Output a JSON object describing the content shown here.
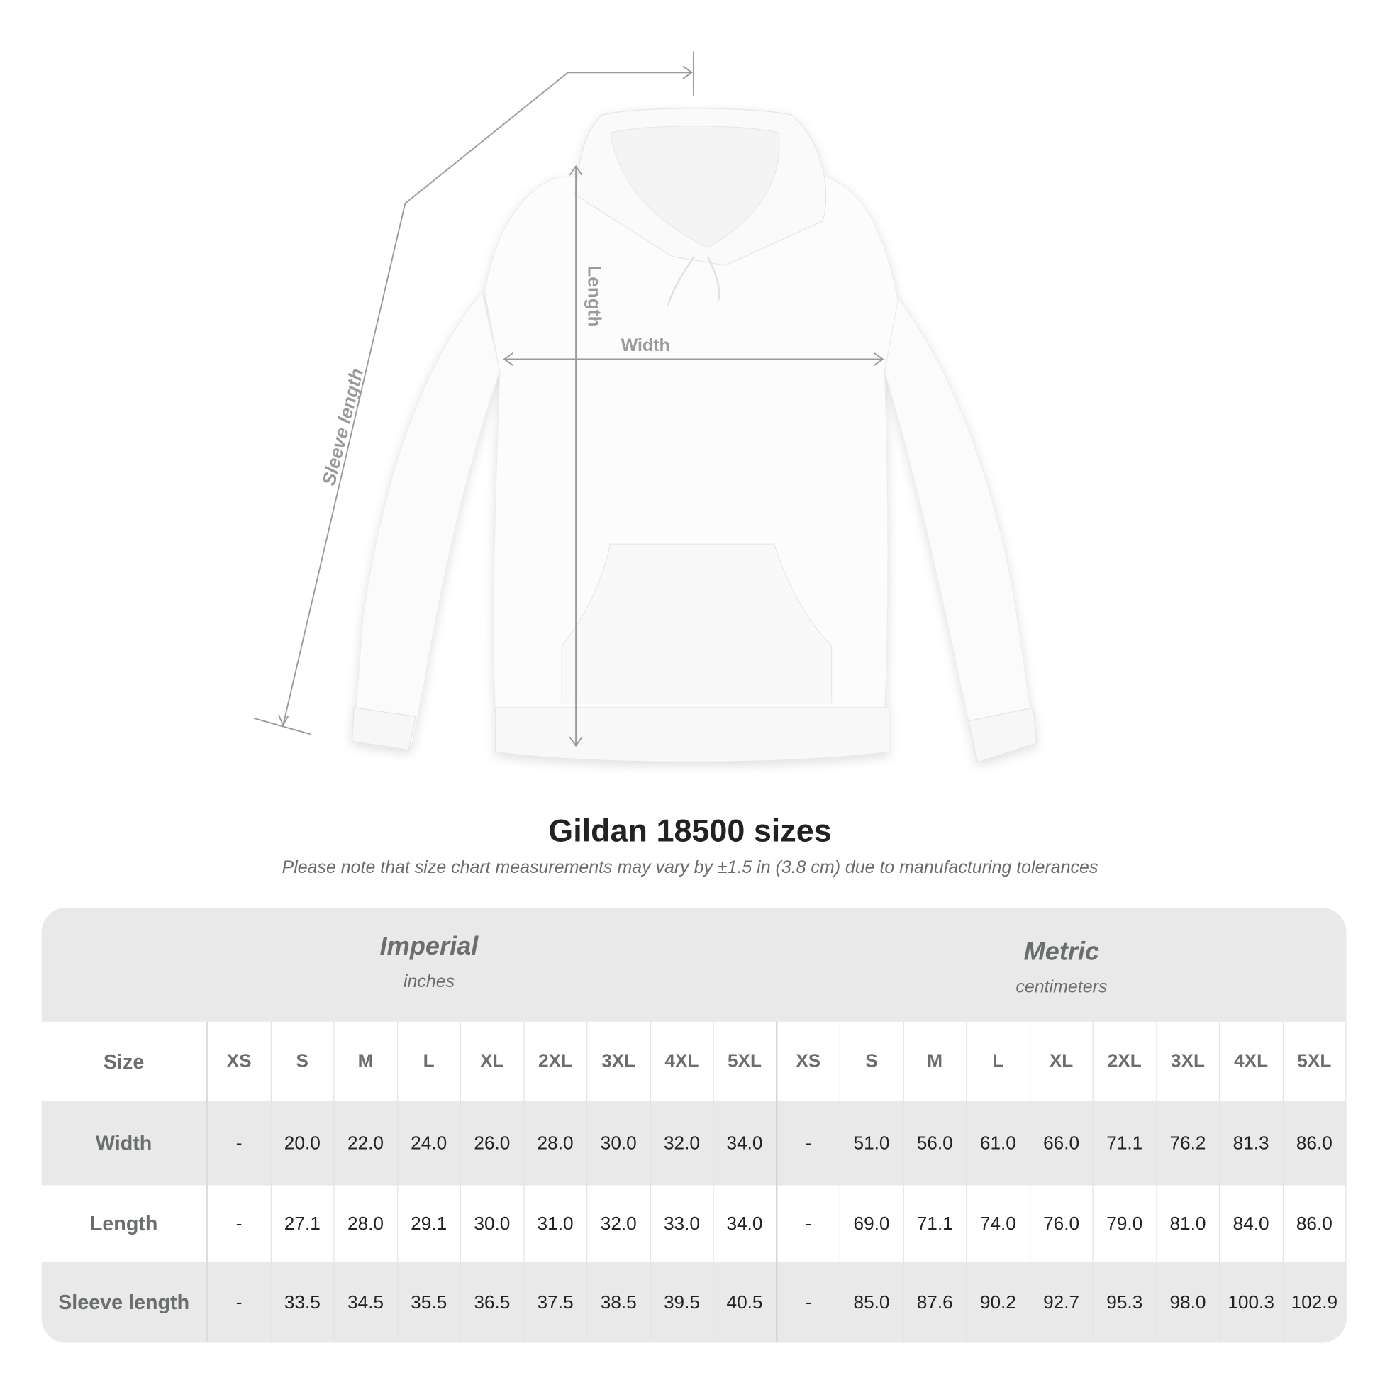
{
  "diagram": {
    "labels": {
      "sleeve": "Sleeve length",
      "length": "Length",
      "width": "Width"
    },
    "line_color": "#9a9a9a"
  },
  "title": "Gildan 18500 sizes",
  "subtitle": "Please note that size chart measurements may vary by ±1.5 in (3.8 cm) due to manufacturing tolerances",
  "table": {
    "imperial": {
      "name": "Imperial",
      "unit": "inches"
    },
    "metric": {
      "name": "Metric",
      "unit": "centimeters"
    },
    "size_label": "Size",
    "sizes": [
      "XS",
      "S",
      "M",
      "L",
      "XL",
      "2XL",
      "3XL",
      "4XL",
      "5XL"
    ],
    "rows": [
      {
        "label": "Width",
        "imperial": [
          "-",
          "20.0",
          "22.0",
          "24.0",
          "26.0",
          "28.0",
          "30.0",
          "32.0",
          "34.0"
        ],
        "metric": [
          "-",
          "51.0",
          "56.0",
          "61.0",
          "66.0",
          "71.1",
          "76.2",
          "81.3",
          "86.0"
        ]
      },
      {
        "label": "Length",
        "imperial": [
          "-",
          "27.1",
          "28.0",
          "29.1",
          "30.0",
          "31.0",
          "32.0",
          "33.0",
          "34.0"
        ],
        "metric": [
          "-",
          "69.0",
          "71.1",
          "74.0",
          "76.0",
          "79.0",
          "81.0",
          "84.0",
          "86.0"
        ]
      },
      {
        "label": "Sleeve length",
        "imperial": [
          "-",
          "33.5",
          "34.5",
          "35.5",
          "36.5",
          "37.5",
          "38.5",
          "39.5",
          "40.5"
        ],
        "metric": [
          "-",
          "85.0",
          "87.6",
          "90.2",
          "92.7",
          "95.3",
          "98.0",
          "100.3",
          "102.9"
        ]
      }
    ],
    "colors": {
      "header_bg": "#e9e9e9",
      "label_text": "#6a6e6e"
    }
  }
}
